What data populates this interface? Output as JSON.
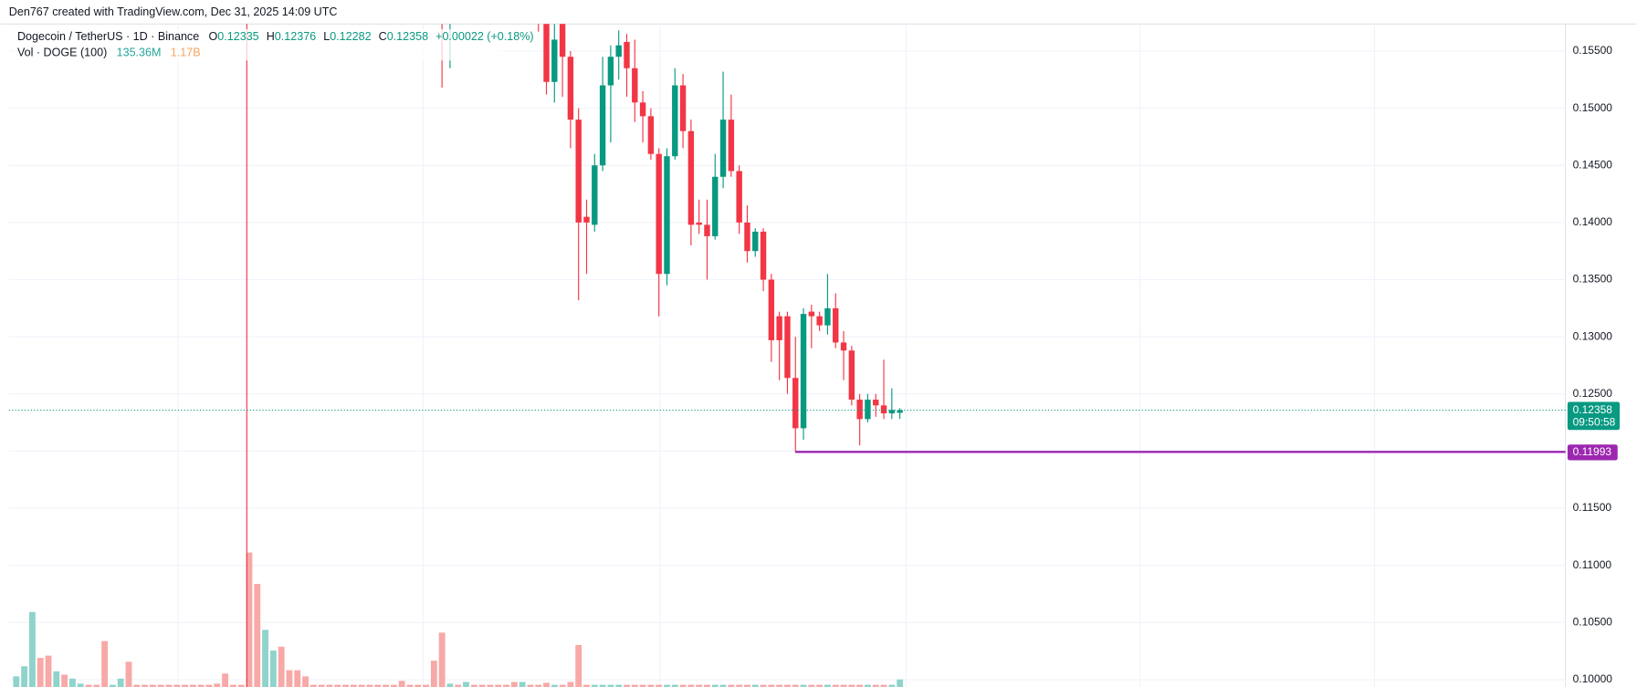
{
  "header": {
    "text": "Den767 created with TradingView.com, Dec 31, 2025 14:09 UTC"
  },
  "chart_data": {
    "type": "candlestick",
    "title": "Dogecoin / TetherUS · 1D · Binance",
    "ohlc_legend": {
      "o_label": "O",
      "o": "0.12335",
      "h_label": "H",
      "h": "0.12376",
      "l_label": "L",
      "l": "0.12282",
      "c_label": "C",
      "c": "0.12358",
      "change": "+0.00022 (+0.18%)"
    },
    "volume_legend": {
      "title": "Vol · DOGE (100)",
      "value": "135.36M",
      "ma": "1.17B"
    },
    "up_color": "#089981",
    "down_color": "#f23645",
    "volume_up_color": "#8fd3cb",
    "volume_down_color": "#f7a9a7",
    "open": [
      null,
      null,
      null,
      null,
      null,
      null,
      null,
      null,
      null,
      null,
      null,
      null,
      null,
      null,
      null,
      null,
      null,
      null,
      null,
      null,
      null,
      null,
      null,
      null,
      null,
      null,
      null,
      null,
      null,
      null,
      null,
      null,
      null,
      null,
      null,
      null,
      null,
      null,
      null,
      null,
      null,
      null,
      null,
      null,
      null,
      null,
      null,
      null,
      null,
      null,
      null,
      null,
      null,
      0.16,
      0.158,
      null,
      null,
      null,
      null,
      null,
      null,
      null,
      null,
      null,
      null,
      0.16,
      0.1575,
      0.1523,
      0.1575,
      0.1545,
      0.149,
      0.1405,
      0.1398,
      0.145,
      0.152,
      0.1545,
      0.1558,
      0.1535,
      0.1505,
      0.1493,
      0.146,
      0.1355,
      0.1458,
      0.152,
      0.148,
      0.14,
      0.1398,
      0.1388,
      0.144,
      0.149,
      0.1445,
      0.14,
      0.1375,
      0.1392,
      0.135,
      0.1318,
      0.1318,
      0.1264,
      0.122,
      0.1322,
      0.1318,
      0.131,
      0.1325,
      0.1295,
      0.1288,
      0.1245,
      0.1228,
      0.1245,
      0.124,
      0.1233,
      0.12335
    ],
    "high": [
      null,
      null,
      null,
      null,
      null,
      null,
      null,
      null,
      null,
      null,
      null,
      null,
      null,
      null,
      null,
      null,
      null,
      null,
      null,
      null,
      null,
      null,
      null,
      null,
      null,
      null,
      null,
      null,
      null,
      null,
      null,
      null,
      null,
      null,
      null,
      null,
      null,
      null,
      null,
      null,
      null,
      null,
      null,
      null,
      null,
      null,
      null,
      null,
      null,
      null,
      null,
      null,
      null,
      0.161,
      0.161,
      null,
      null,
      null,
      null,
      null,
      null,
      null,
      null,
      null,
      null,
      0.161,
      0.158,
      0.158,
      0.158,
      0.155,
      0.15,
      0.142,
      0.146,
      0.1545,
      0.1555,
      0.1568,
      0.1565,
      0.156,
      0.1515,
      0.15,
      0.1465,
      0.1465,
      0.1535,
      0.153,
      0.149,
      0.142,
      0.142,
      0.146,
      0.1532,
      0.1512,
      0.145,
      0.1415,
      0.1395,
      0.1395,
      0.1355,
      0.1322,
      0.1322,
      0.13,
      0.1325,
      0.1328,
      0.1322,
      0.1355,
      0.1338,
      0.1305,
      0.1292,
      0.125,
      0.125,
      0.125,
      0.128,
      0.1255,
      0.12376
    ],
    "low": [
      null,
      null,
      null,
      null,
      null,
      null,
      null,
      null,
      null,
      null,
      null,
      null,
      null,
      null,
      null,
      null,
      null,
      null,
      null,
      null,
      null,
      null,
      null,
      null,
      null,
      null,
      null,
      null,
      null,
      null,
      null,
      null,
      null,
      null,
      null,
      null,
      null,
      null,
      null,
      null,
      null,
      null,
      null,
      null,
      null,
      null,
      null,
      null,
      null,
      null,
      null,
      null,
      null,
      0.1518,
      0.1535,
      null,
      null,
      null,
      null,
      null,
      null,
      null,
      null,
      null,
      null,
      0.1567,
      0.1512,
      0.1505,
      0.151,
      0.1465,
      0.1332,
      0.1355,
      0.1392,
      0.1445,
      0.147,
      0.1525,
      0.151,
      0.1488,
      0.147,
      0.1455,
      0.1318,
      0.1345,
      0.1455,
      0.1465,
      0.138,
      0.139,
      0.135,
      0.1385,
      0.143,
      0.144,
      0.139,
      0.1365,
      0.137,
      0.134,
      0.1278,
      0.1262,
      0.125,
      0.1199,
      0.121,
      0.129,
      0.1305,
      0.1302,
      0.129,
      0.1262,
      0.124,
      0.1205,
      0.1225,
      0.123,
      0.1228,
      0.1228,
      0.12282
    ],
    "close": [
      null,
      null,
      null,
      null,
      null,
      null,
      null,
      null,
      null,
      null,
      null,
      null,
      null,
      null,
      null,
      null,
      null,
      null,
      null,
      null,
      null,
      null,
      null,
      null,
      null,
      null,
      null,
      null,
      null,
      null,
      null,
      null,
      null,
      null,
      null,
      null,
      null,
      null,
      null,
      null,
      null,
      null,
      null,
      null,
      null,
      null,
      null,
      null,
      null,
      null,
      null,
      null,
      null,
      0.1585,
      0.16,
      null,
      null,
      null,
      null,
      null,
      null,
      null,
      null,
      null,
      null,
      0.1585,
      0.1523,
      0.156,
      0.1545,
      0.149,
      0.14,
      0.14,
      0.145,
      0.152,
      0.1545,
      0.1555,
      0.1535,
      0.1505,
      0.1493,
      0.146,
      0.1355,
      0.1458,
      0.152,
      0.148,
      0.1398,
      0.1398,
      0.1388,
      0.144,
      0.149,
      0.1445,
      0.14,
      0.1375,
      0.1392,
      0.135,
      0.1297,
      0.1297,
      0.1264,
      0.122,
      0.132,
      0.1318,
      0.131,
      0.1325,
      0.1295,
      0.1288,
      0.1245,
      0.1228,
      0.1245,
      0.124,
      0.1233,
      0.1236,
      0.12358
    ],
    "volume": [
      190,
      370,
      1340,
      520,
      560,
      280,
      220,
      150,
      60,
      40,
      40,
      820,
      40,
      150,
      450,
      40,
      40,
      40,
      40,
      40,
      40,
      40,
      40,
      40,
      40,
      60,
      240,
      40,
      40,
      2400,
      1840,
      1020,
      650,
      720,
      300,
      300,
      190,
      40,
      40,
      40,
      40,
      40,
      40,
      40,
      40,
      40,
      40,
      40,
      110,
      40,
      40,
      40,
      470,
      970,
      60,
      40,
      90,
      40,
      40,
      40,
      40,
      40,
      90,
      90,
      40,
      40,
      75,
      40,
      40,
      90,
      750,
      40,
      40,
      40,
      40,
      40,
      40,
      40,
      40,
      40,
      40,
      40,
      40,
      40,
      40,
      40,
      40,
      40,
      40,
      40,
      40,
      40,
      40,
      40,
      40,
      40,
      40,
      40,
      40,
      40,
      40,
      40,
      40,
      40,
      40,
      40,
      40,
      40,
      40,
      40,
      135.36
    ],
    "volume_up": [
      1,
      1,
      1,
      0,
      0,
      1,
      0,
      1,
      1,
      0,
      0,
      0,
      1,
      1,
      0,
      0,
      0,
      0,
      0,
      0,
      0,
      0,
      0,
      0,
      0,
      0,
      0,
      0,
      0,
      0,
      0,
      1,
      1,
      0,
      0,
      0,
      0,
      0,
      0,
      0,
      0,
      0,
      0,
      0,
      0,
      0,
      0,
      0,
      0,
      0,
      0,
      0,
      0,
      0,
      1,
      0,
      1,
      0,
      0,
      0,
      0,
      0,
      0,
      1,
      0,
      0,
      0,
      1,
      0,
      0,
      0,
      0,
      1,
      1,
      1,
      1,
      0,
      0,
      0,
      0,
      0,
      1,
      1,
      0,
      0,
      0,
      0,
      1,
      1,
      0,
      0,
      0,
      1,
      0,
      0,
      0,
      0,
      0,
      1,
      0,
      0,
      1,
      0,
      0,
      0,
      0,
      1,
      0,
      0,
      1,
      1
    ],
    "countdown": "09:50:58",
    "hline": 0.11993,
    "hline_color": "#9c27b0",
    "ylim": [
      0.09936,
      0.15737
    ],
    "yticks": [
      {
        "value": 0.1,
        "label": "0.10000"
      },
      {
        "value": 0.105,
        "label": "0.10500"
      },
      {
        "value": 0.11,
        "label": "0.11000"
      },
      {
        "value": 0.115,
        "label": "0.11500"
      },
      {
        "value": 0.12,
        "label": "0.12000"
      },
      {
        "value": 0.125,
        "label": "0.12500"
      },
      {
        "value": 0.13,
        "label": "0.13000"
      },
      {
        "value": 0.135,
        "label": "0.13500"
      },
      {
        "value": 0.14,
        "label": "0.14000"
      },
      {
        "value": 0.145,
        "label": "0.14500"
      },
      {
        "value": 0.15,
        "label": "0.15000"
      },
      {
        "value": 0.155,
        "label": "0.15500"
      }
    ],
    "grid": true
  }
}
